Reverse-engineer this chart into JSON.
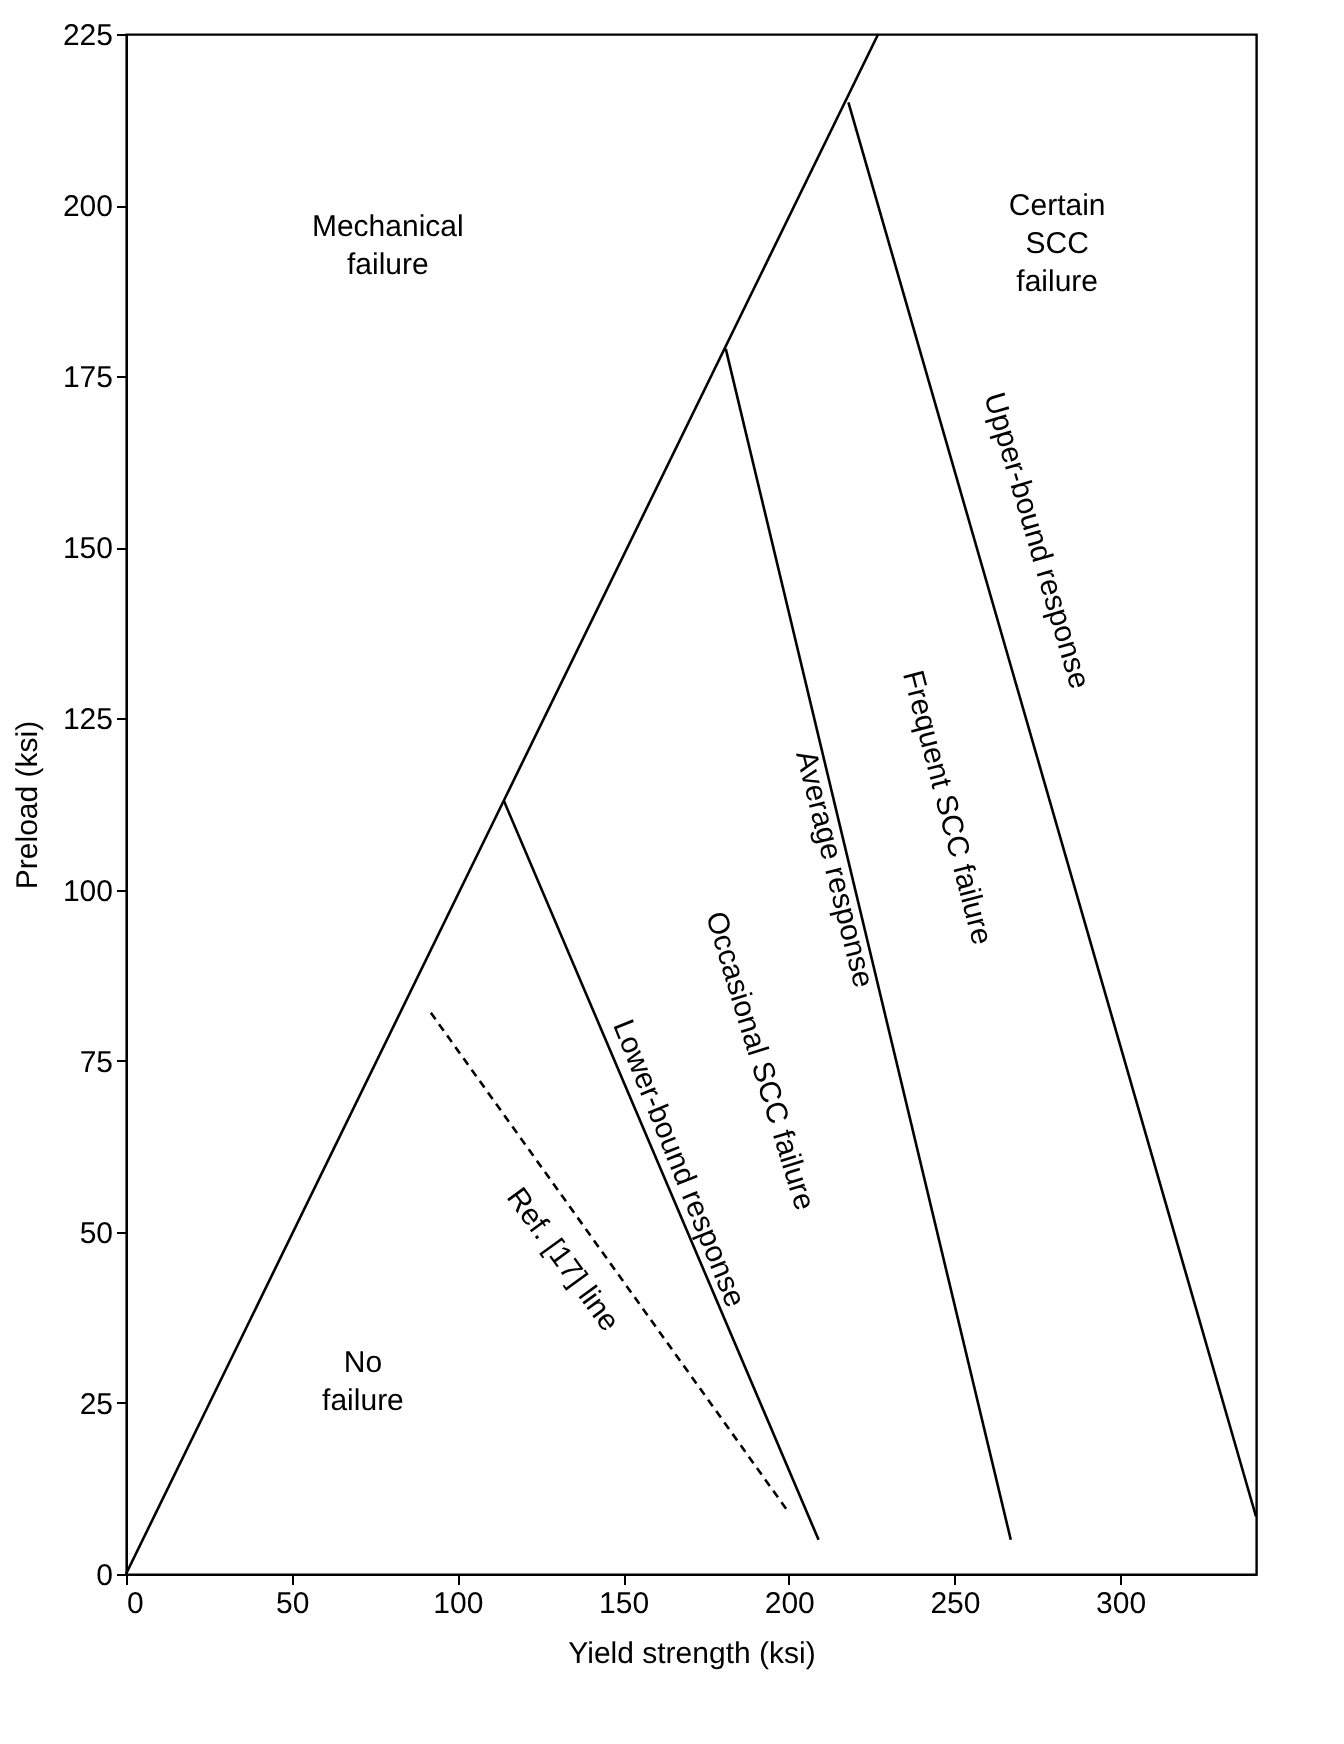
{
  "chart_data": {
    "type": "line",
    "xlabel": "Yield strength (ksi)",
    "ylabel": "Preload (ksi)",
    "xlim": [
      0,
      341
    ],
    "ylim": [
      0,
      225
    ],
    "xticks": [
      0,
      50,
      100,
      150,
      200,
      250,
      300
    ],
    "yticks": [
      0,
      25,
      50,
      75,
      100,
      125,
      150,
      175,
      200,
      225
    ],
    "grid": false,
    "marker": "none",
    "series": [
      {
        "color": "#000000",
        "x": [
          0,
          227
        ],
        "values": [
          0,
          225
        ],
        "line_style": "solid"
      },
      {
        "name": "Upper-bound response",
        "color": "#000000",
        "x": [
          218,
          341
        ],
        "values": [
          215,
          8.4
        ],
        "line_style": "solid"
      },
      {
        "name": "Average response",
        "color": "#000000",
        "x": [
          181,
          267
        ],
        "values": [
          179,
          5
        ],
        "line_style": "solid"
      },
      {
        "name": "Lower-bound response",
        "color": "#000000",
        "x": [
          114,
          209
        ],
        "values": [
          113,
          5
        ],
        "line_style": "solid"
      },
      {
        "name": "Ref. [17] line",
        "color": "#000000",
        "x": [
          92,
          200
        ],
        "values": [
          82,
          9
        ],
        "line_style": "dashed"
      }
    ],
    "annotations": [
      "Mechanical failure",
      "Certain SCC failure",
      "No failure",
      "Occasional SCC failure",
      "Frequent SCC failure"
    ]
  }
}
